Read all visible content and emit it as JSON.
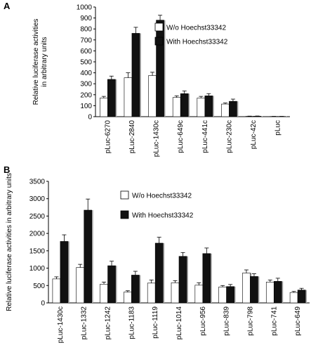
{
  "chart_data": [
    {
      "panel": "A",
      "type": "bar",
      "ylabel": "Relative luciferase activities in arbitrary units",
      "ylim": [
        0,
        1000
      ],
      "yticks": [
        0,
        100,
        200,
        300,
        400,
        500,
        600,
        700,
        800,
        900,
        1000
      ],
      "categories": [
        "pLuc-6270",
        "pLuc-2840",
        "pLuc-1430c",
        "pLuc-649c",
        "pLuc-441c",
        "pLuc-230c",
        "pLuc-42c",
        "pLuc"
      ],
      "legend_position": "top-right",
      "series": [
        {
          "name": "W/o Hoechst33342",
          "color": "#ffffff",
          "values": [
            170,
            355,
            375,
            175,
            170,
            115,
            3,
            2
          ],
          "errors": [
            15,
            45,
            30,
            15,
            15,
            10,
            2,
            1
          ]
        },
        {
          "name": "With Hoechst33342",
          "color": "#111111",
          "values": [
            340,
            760,
            880,
            210,
            190,
            140,
            4,
            2
          ],
          "errors": [
            30,
            55,
            45,
            25,
            20,
            20,
            2,
            1
          ]
        }
      ]
    },
    {
      "panel": "B",
      "type": "bar",
      "ylabel": "Relative luciferase activities in arbitrary units",
      "ylim": [
        0,
        3500
      ],
      "yticks": [
        0,
        500,
        1000,
        1500,
        2000,
        2500,
        3000,
        3500
      ],
      "categories": [
        "pLuc-1430c",
        "pLuc-1332",
        "pLuc-1242",
        "pLuc-1183",
        "pLuc-1119",
        "pLuc-1014",
        "pLuc-956",
        "pLuc-839",
        "pLuc-798",
        "pLuc-741",
        "pLuc-649"
      ],
      "legend_position": "top-center",
      "series": [
        {
          "name": "W/o Hoechst33342",
          "color": "#ffffff",
          "values": [
            690,
            1020,
            540,
            310,
            570,
            580,
            510,
            460,
            860,
            600,
            300
          ],
          "errors": [
            60,
            90,
            60,
            40,
            90,
            60,
            70,
            40,
            90,
            60,
            30
          ]
        },
        {
          "name": "With Hoechst33342",
          "color": "#111111",
          "values": [
            1770,
            2670,
            1070,
            800,
            1720,
            1340,
            1420,
            470,
            760,
            620,
            370
          ],
          "errors": [
            190,
            320,
            130,
            110,
            170,
            110,
            160,
            60,
            80,
            90,
            50
          ]
        }
      ]
    }
  ]
}
